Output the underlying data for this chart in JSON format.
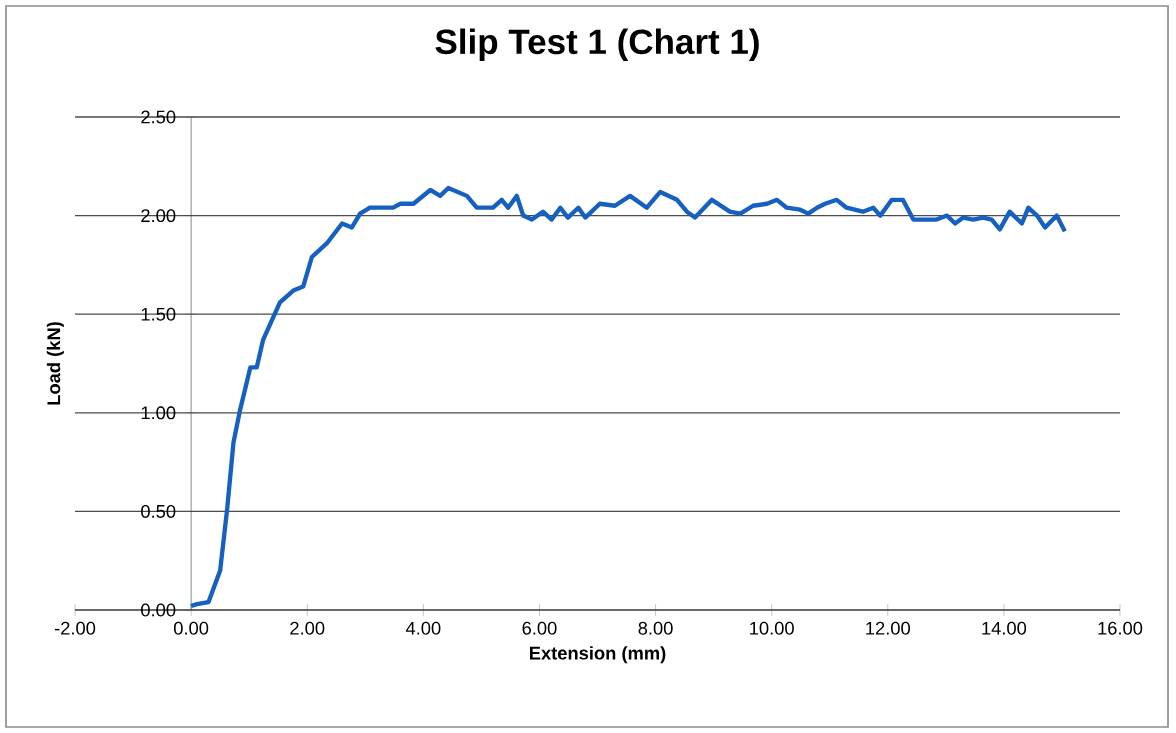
{
  "chart_data": {
    "type": "line",
    "title": "Slip Test 1 (Chart 1)",
    "xlabel": "Extension (mm)",
    "ylabel": "Load (kN)",
    "x": [
      0,
      0.1,
      0.3,
      0.5,
      0.62,
      0.73,
      0.84,
      1.02,
      1.13,
      1.24,
      1.53,
      1.76,
      1.93,
      2.08,
      2.34,
      2.6,
      2.77,
      2.91,
      3.08,
      3.31,
      3.48,
      3.6,
      3.83,
      4.12,
      4.29,
      4.43,
      4.75,
      4.92,
      5.2,
      5.35,
      5.46,
      5.61,
      5.72,
      5.87,
      6.06,
      6.21,
      6.36,
      6.49,
      6.67,
      6.79,
      7.04,
      7.3,
      7.56,
      7.85,
      8.08,
      8.37,
      8.54,
      8.68,
      8.97,
      9.28,
      9.46,
      9.68,
      9.92,
      10.09,
      10.26,
      10.49,
      10.63,
      10.78,
      10.92,
      11.12,
      11.29,
      11.57,
      11.75,
      11.87,
      12.07,
      12.26,
      12.44,
      12.84,
      13.02,
      13.16,
      13.3,
      13.47,
      13.64,
      13.79,
      13.93,
      14.1,
      14.31,
      14.42,
      14.57,
      14.71,
      14.91,
      15.05
    ],
    "values": [
      0.02,
      0.03,
      0.04,
      0.2,
      0.51,
      0.85,
      1.01,
      1.23,
      1.23,
      1.37,
      1.56,
      1.62,
      1.64,
      1.79,
      1.86,
      1.96,
      1.94,
      2.01,
      2.04,
      2.04,
      2.04,
      2.06,
      2.06,
      2.13,
      2.1,
      2.14,
      2.1,
      2.04,
      2.04,
      2.08,
      2.04,
      2.1,
      2.0,
      1.98,
      2.02,
      1.98,
      2.04,
      1.99,
      2.04,
      1.99,
      2.06,
      2.05,
      2.1,
      2.04,
      2.12,
      2.08,
      2.02,
      1.99,
      2.08,
      2.02,
      2.01,
      2.05,
      2.06,
      2.08,
      2.04,
      2.03,
      2.01,
      2.04,
      2.06,
      2.08,
      2.04,
      2.02,
      2.04,
      2.0,
      2.08,
      2.08,
      1.98,
      1.98,
      2.0,
      1.96,
      1.99,
      1.98,
      1.99,
      1.98,
      1.93,
      2.02,
      1.96,
      2.04,
      2.0,
      1.94,
      2.0,
      1.92
    ],
    "color": "#1560c0",
    "marker": "none",
    "line_style": "solid",
    "grid": "y",
    "xlim": [
      -2,
      16
    ],
    "ylim": [
      0,
      2.5
    ],
    "xticks": [
      {
        "value": -2,
        "label": "-2.00"
      },
      {
        "value": 0,
        "label": "0.00"
      },
      {
        "value": 2,
        "label": "2.00"
      },
      {
        "value": 4,
        "label": "4.00"
      },
      {
        "value": 6,
        "label": "6.00"
      },
      {
        "value": 8,
        "label": "8.00"
      },
      {
        "value": 10,
        "label": "10.00"
      },
      {
        "value": 12,
        "label": "12.00"
      },
      {
        "value": 14,
        "label": "14.00"
      },
      {
        "value": 16,
        "label": "16.00"
      }
    ],
    "yticks": [
      {
        "value": 0,
        "label": "0.00"
      },
      {
        "value": 0.5,
        "label": "0.50"
      },
      {
        "value": 1,
        "label": "1.00"
      },
      {
        "value": 1.5,
        "label": "1.50"
      },
      {
        "value": 2,
        "label": "2.00"
      },
      {
        "value": 2.5,
        "label": "2.50"
      }
    ]
  }
}
